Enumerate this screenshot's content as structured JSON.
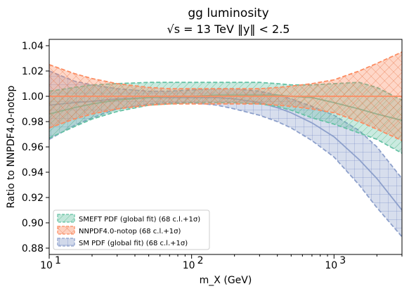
{
  "chart_data": {
    "type": "area",
    "title": "gg luminosity",
    "subtitle": "√s = 13 TeV   ‖y‖ < 2.5",
    "xlabel": "m_X (GeV)",
    "ylabel": "Ratio to NNPDF4.0-notop",
    "x_scale": "log",
    "xlim": [
      10,
      3000
    ],
    "ylim": [
      0.875,
      1.045
    ],
    "x_ticks": [
      10,
      100,
      1000
    ],
    "x_tick_labels": [
      "10",
      "10",
      "10"
    ],
    "x_tick_exponents": [
      "1",
      "2",
      "3"
    ],
    "y_ticks": [
      0.88,
      0.9,
      0.92,
      0.94,
      0.96,
      0.98,
      1.0,
      1.02,
      1.04
    ],
    "y_tick_labels": [
      "0.88",
      "0.90",
      "0.92",
      "0.94",
      "0.96",
      "0.98",
      "1.00",
      "1.02",
      "1.04"
    ],
    "legend_position": "bottom-left",
    "x": [
      10,
      15,
      20,
      30,
      50,
      70,
      100,
      150,
      200,
      300,
      400,
      500,
      700,
      1000,
      1500,
      2000,
      3000
    ],
    "series": [
      {
        "name": "SMEFT PDF (global fit) (68 c.l.+1σ)",
        "color": "#66c2a5",
        "hatch": "diagonal",
        "central": [
          0.986,
          0.991,
          0.994,
          0.997,
          0.999,
          1.0,
          1.0,
          1.001,
          1.001,
          1.001,
          1.001,
          1.0,
          0.999,
          0.995,
          0.99,
          0.986,
          0.981
        ],
        "upper": [
          1.004,
          1.007,
          1.009,
          1.01,
          1.011,
          1.011,
          1.011,
          1.011,
          1.011,
          1.011,
          1.01,
          1.009,
          1.009,
          1.01,
          1.011,
          1.007,
          0.997
        ],
        "lower": [
          0.967,
          0.976,
          0.982,
          0.988,
          0.993,
          0.994,
          0.995,
          0.995,
          0.995,
          0.994,
          0.992,
          0.989,
          0.983,
          0.978,
          0.971,
          0.966,
          0.955
        ]
      },
      {
        "name": "NNPDF4.0-notop (68 c.l.+1σ)",
        "color": "#fc8d62",
        "hatch": "cross",
        "central": [
          1.0,
          1.0,
          1.0,
          1.0,
          1.0,
          1.0,
          1.0,
          1.0,
          1.0,
          1.0,
          1.0,
          1.0,
          1.0,
          1.0,
          1.0,
          1.0,
          1.0
        ],
        "upper": [
          1.025,
          1.018,
          1.014,
          1.01,
          1.007,
          1.006,
          1.006,
          1.006,
          1.006,
          1.006,
          1.007,
          1.008,
          1.01,
          1.013,
          1.02,
          1.026,
          1.035
        ],
        "lower": [
          0.975,
          0.982,
          0.986,
          0.99,
          0.993,
          0.994,
          0.994,
          0.994,
          0.994,
          0.994,
          0.993,
          0.992,
          0.99,
          0.987,
          0.98,
          0.974,
          0.965
        ]
      },
      {
        "name": "SM PDF (global fit) (68 c.l.+1σ)",
        "color": "#8da0cb",
        "hatch": "grid",
        "central": [
          0.993,
          0.995,
          0.996,
          0.998,
          0.999,
          0.999,
          0.999,
          0.999,
          0.998,
          0.995,
          0.991,
          0.987,
          0.979,
          0.968,
          0.95,
          0.935,
          0.91
        ],
        "upper": [
          1.02,
          1.012,
          1.009,
          1.006,
          1.004,
          1.004,
          1.005,
          1.006,
          1.006,
          1.004,
          1.001,
          0.998,
          0.992,
          0.985,
          0.973,
          0.96,
          0.935
        ],
        "lower": [
          0.966,
          0.977,
          0.983,
          0.99,
          0.994,
          0.995,
          0.995,
          0.993,
          0.99,
          0.985,
          0.98,
          0.975,
          0.965,
          0.952,
          0.93,
          0.912,
          0.889
        ]
      }
    ]
  }
}
